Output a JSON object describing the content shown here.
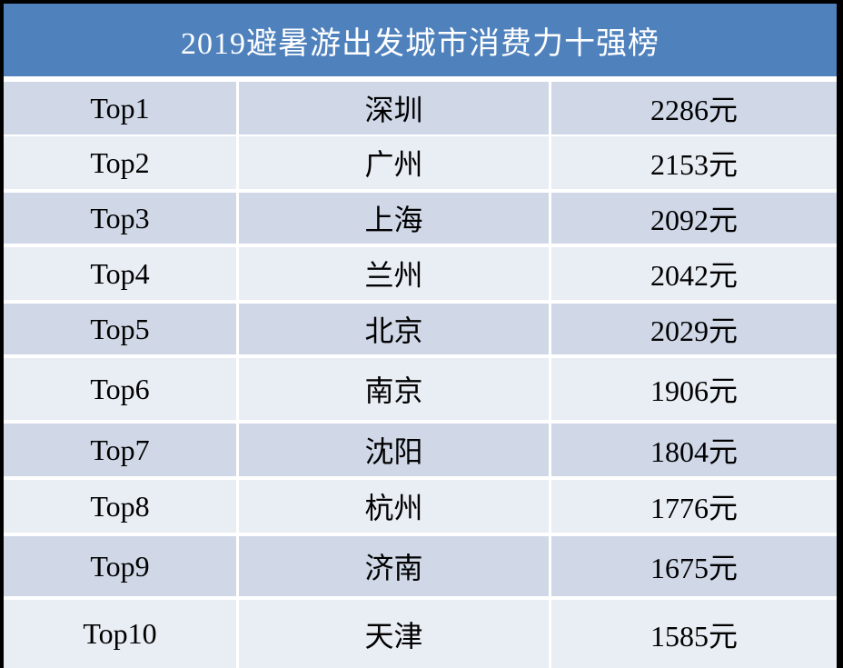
{
  "table": {
    "title": "2019避暑游出发城市消费力十强榜",
    "rows": [
      [
        "Top1",
        "深圳",
        "2286元"
      ],
      [
        "Top2",
        "广州",
        "2153元"
      ],
      [
        "Top3",
        "上海",
        "2092元"
      ],
      [
        "Top4",
        "兰州",
        "2042元"
      ],
      [
        "Top5",
        "北京",
        "2029元"
      ],
      [
        "Top6",
        "南京",
        "1906元"
      ],
      [
        "Top7",
        "沈阳",
        "1804元"
      ],
      [
        "Top8",
        "杭州",
        "1776元"
      ],
      [
        "Top9",
        "济南",
        "1675元"
      ],
      [
        "Top10",
        "天津",
        "1585元"
      ]
    ]
  }
}
